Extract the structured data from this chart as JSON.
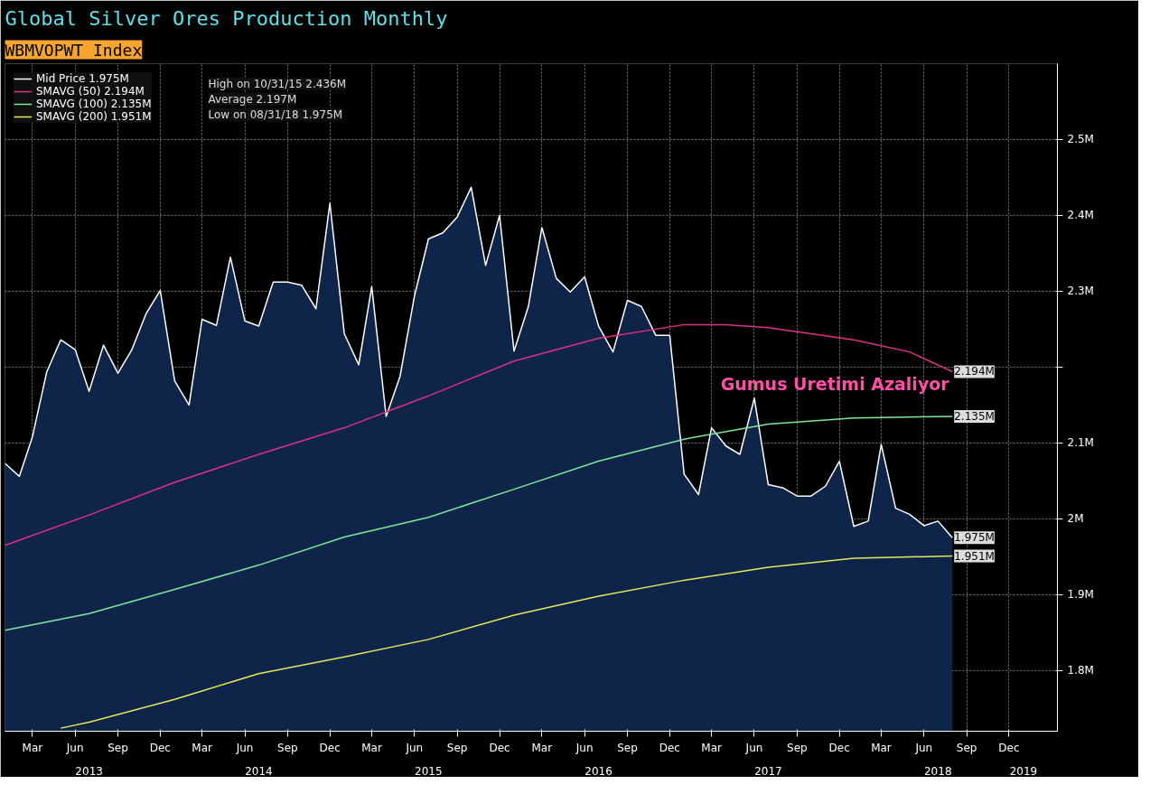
{
  "chart_data": {
    "type": "line",
    "title": "Global Silver Ores Production Monthly",
    "subtitle": "WBMVOPWT Index",
    "x": [
      "2013-01",
      "2013-02",
      "2013-03",
      "2013-04",
      "2013-05",
      "2013-06",
      "2013-07",
      "2013-08",
      "2013-09",
      "2013-10",
      "2013-11",
      "2013-12",
      "2014-01",
      "2014-02",
      "2014-03",
      "2014-04",
      "2014-05",
      "2014-06",
      "2014-07",
      "2014-08",
      "2014-09",
      "2014-10",
      "2014-11",
      "2014-12",
      "2015-01",
      "2015-02",
      "2015-03",
      "2015-04",
      "2015-05",
      "2015-06",
      "2015-07",
      "2015-08",
      "2015-09",
      "2015-10",
      "2015-11",
      "2015-12",
      "2016-01",
      "2016-02",
      "2016-03",
      "2016-04",
      "2016-05",
      "2016-06",
      "2016-07",
      "2016-08",
      "2016-09",
      "2016-10",
      "2016-11",
      "2016-12",
      "2017-01",
      "2017-02",
      "2017-03",
      "2017-04",
      "2017-05",
      "2017-06",
      "2017-07",
      "2017-08",
      "2017-09",
      "2017-10",
      "2017-11",
      "2017-12",
      "2018-01",
      "2018-02",
      "2018-03",
      "2018-04",
      "2018-05",
      "2018-06",
      "2018-07",
      "2018-08"
    ],
    "series": [
      {
        "name": "Mid Price 1.975M",
        "type": "area",
        "color": "#ffffff",
        "values": [
          2.073,
          2.056,
          2.108,
          2.194,
          2.236,
          2.223,
          2.168,
          2.229,
          2.192,
          2.223,
          2.271,
          2.301,
          2.182,
          2.15,
          2.263,
          2.255,
          2.345,
          2.261,
          2.254,
          2.312,
          2.312,
          2.308,
          2.277,
          2.416,
          2.244,
          2.203,
          2.306,
          2.135,
          2.188,
          2.294,
          2.369,
          2.377,
          2.398,
          2.437,
          2.334,
          2.4,
          2.221,
          2.28,
          2.384,
          2.317,
          2.299,
          2.319,
          2.254,
          2.22,
          2.288,
          2.28,
          2.242,
          2.242,
          2.059,
          2.032,
          2.12,
          2.096,
          2.085,
          2.159,
          2.045,
          2.041,
          2.03,
          2.03,
          2.043,
          2.076,
          1.99,
          1.997,
          2.098,
          2.014,
          2.006,
          1.991,
          1.997,
          1.975
        ]
      },
      {
        "name": "SMAVG (50) 2.194M",
        "color": "#e0308a",
        "x": [
          "2013-01",
          "2013-07",
          "2014-01",
          "2014-07",
          "2015-01",
          "2015-07",
          "2016-01",
          "2016-07",
          "2017-01",
          "2017-04",
          "2017-07",
          "2018-01",
          "2018-05",
          "2018-08"
        ],
        "values": [
          1.965,
          2.005,
          2.048,
          2.085,
          2.12,
          2.162,
          2.208,
          2.238,
          2.256,
          2.256,
          2.252,
          2.236,
          2.22,
          2.194
        ]
      },
      {
        "name": "SMAVG (100) 2.135M",
        "color": "#7ee89a",
        "x": [
          "2013-01",
          "2013-07",
          "2014-01",
          "2014-07",
          "2015-01",
          "2015-07",
          "2016-01",
          "2016-07",
          "2017-01",
          "2017-07",
          "2018-01",
          "2018-08"
        ],
        "values": [
          1.853,
          1.875,
          1.907,
          1.939,
          1.976,
          2.002,
          2.039,
          2.076,
          2.105,
          2.125,
          2.133,
          2.135
        ]
      },
      {
        "name": "SMAVG (200) 1.951M",
        "color": "#e8e85a",
        "x": [
          "2013-05",
          "2013-07",
          "2014-01",
          "2014-07",
          "2015-01",
          "2015-07",
          "2016-01",
          "2016-07",
          "2017-01",
          "2017-07",
          "2018-01",
          "2018-08"
        ],
        "values": [
          1.724,
          1.732,
          1.762,
          1.796,
          1.818,
          1.841,
          1.873,
          1.898,
          1.919,
          1.936,
          1.948,
          1.951
        ]
      }
    ],
    "annotations": [
      "High on 10/31/15 2.436M",
      "Average 2.197M",
      "Low on 08/31/18 1.975M",
      "Gumus Uretimi Azaliyor",
      {
        "text": "2.194M",
        "x": "2018-08",
        "y": 2.194
      },
      {
        "text": "2.135M",
        "x": "2018-08",
        "y": 2.135
      },
      {
        "text": "1.975M",
        "x": "2018-08",
        "y": 1.975
      },
      {
        "text": "1.951M",
        "x": "2018-08",
        "y": 1.951
      }
    ],
    "xlim": [
      "2013-01",
      "2019-03-15"
    ],
    "xticks": [
      {
        "value": "2013-03",
        "label": "Mar"
      },
      {
        "value": "2013-06",
        "label": "Jun"
      },
      {
        "value": "2013-09",
        "label": "Sep"
      },
      {
        "value": "2013-12",
        "label": "Dec"
      },
      {
        "value": "2014-03",
        "label": "Mar"
      },
      {
        "value": "2014-06",
        "label": "Jun"
      },
      {
        "value": "2014-09",
        "label": "Sep"
      },
      {
        "value": "2014-12",
        "label": "Dec"
      },
      {
        "value": "2015-03",
        "label": "Mar"
      },
      {
        "value": "2015-06",
        "label": "Jun"
      },
      {
        "value": "2015-09",
        "label": "Sep"
      },
      {
        "value": "2015-12",
        "label": "Dec"
      },
      {
        "value": "2016-03",
        "label": "Mar"
      },
      {
        "value": "2016-06",
        "label": "Jun"
      },
      {
        "value": "2016-09",
        "label": "Sep"
      },
      {
        "value": "2016-12",
        "label": "Dec"
      },
      {
        "value": "2017-03",
        "label": "Mar"
      },
      {
        "value": "2017-06",
        "label": "Jun"
      },
      {
        "value": "2017-09",
        "label": "Sep"
      },
      {
        "value": "2017-12",
        "label": "Dec"
      },
      {
        "value": "2018-03",
        "label": "Mar"
      },
      {
        "value": "2018-06",
        "label": "Jun"
      },
      {
        "value": "2018-09",
        "label": "Sep"
      },
      {
        "value": "2018-12",
        "label": "Dec"
      }
    ],
    "x2lim": [
      "2013-01",
      "2019-03-15"
    ],
    "x2ticks": [
      {
        "value": "2013-07",
        "label": "2013"
      },
      {
        "value": "2014-07",
        "label": "2014"
      },
      {
        "value": "2015-07",
        "label": "2015"
      },
      {
        "value": "2016-07",
        "label": "2016"
      },
      {
        "value": "2017-07",
        "label": "2017"
      },
      {
        "value": "2018-07",
        "label": "2018"
      },
      {
        "value": "2019-01",
        "label": "2019"
      }
    ],
    "ylim": [
      1.72,
      2.6
    ],
    "yticks": [
      {
        "value": 1.8,
        "label": "1.8M"
      },
      {
        "value": 1.9,
        "label": "1.9M"
      },
      {
        "value": 2.0,
        "label": "2M"
      },
      {
        "value": 2.1,
        "label": "2.1M"
      },
      {
        "value": 2.2,
        "label": null
      },
      {
        "value": 2.3,
        "label": "2.3M"
      },
      {
        "value": 2.4,
        "label": "2.4M"
      },
      {
        "value": 2.5,
        "label": "2.5M"
      }
    ],
    "grid": true,
    "legend": "top left"
  }
}
